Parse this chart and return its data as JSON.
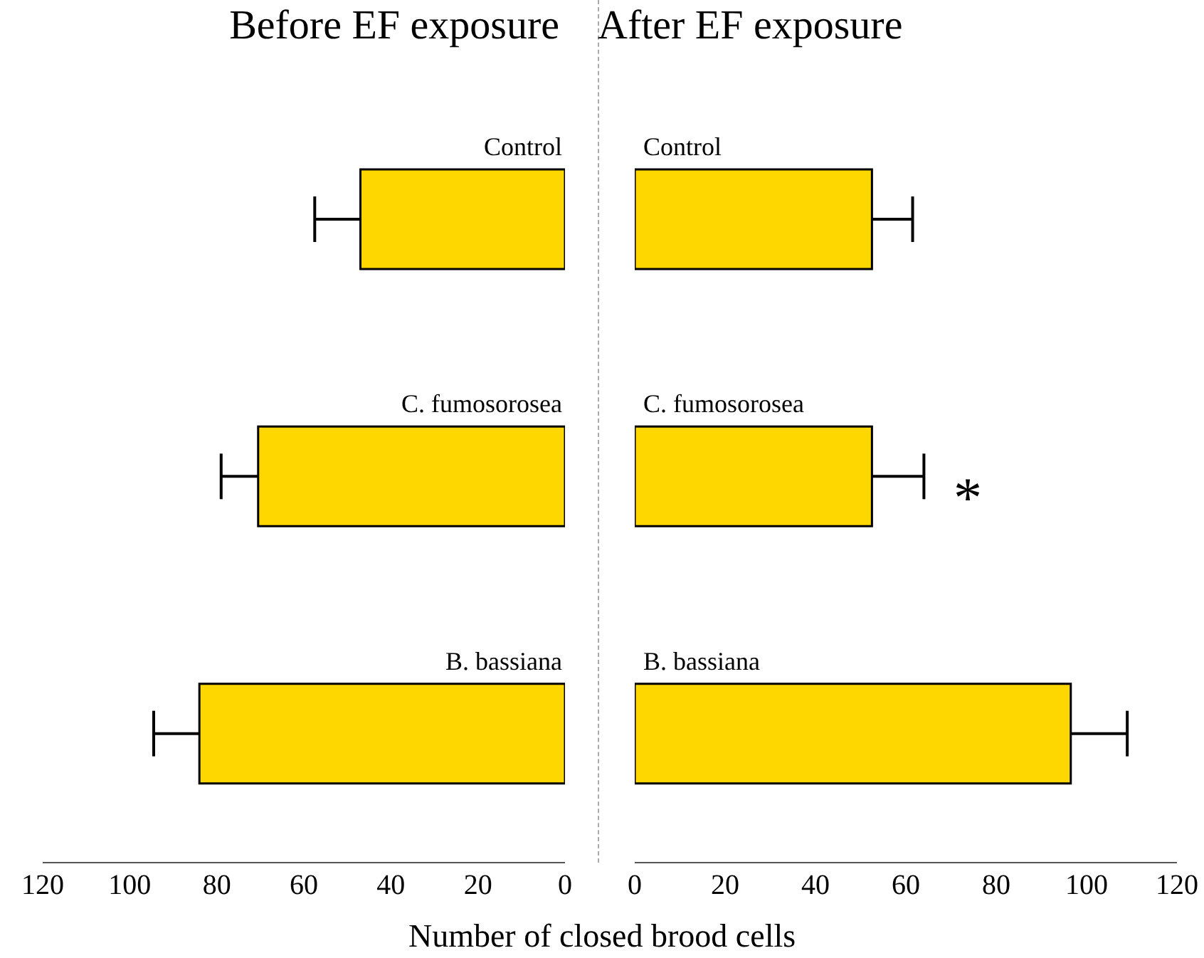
{
  "chart_data": [
    {
      "type": "bar",
      "orientation": "horizontal",
      "title": "Before EF exposure",
      "xlabel": "Number of closed brood cells",
      "categories": [
        "Control",
        "C. fumosorosea",
        "B. bassiana"
      ],
      "values": [
        47,
        70.5,
        84
      ],
      "errors": [
        [
          47,
          57.5
        ],
        [
          70.5,
          79
        ],
        [
          84,
          94.5
        ]
      ],
      "color": "#ffd700",
      "xlim": [
        120,
        0
      ],
      "xticks": [
        120,
        100,
        80,
        60,
        40,
        20,
        0
      ],
      "grid": false,
      "legend": false
    },
    {
      "type": "bar",
      "orientation": "horizontal",
      "title": "After EF exposure",
      "categories": [
        "Control",
        "C. fumosorosea",
        "B. bassiana"
      ],
      "values": [
        52.5,
        52.5,
        96.5
      ],
      "errors": [
        [
          52.5,
          61.5
        ],
        [
          52.5,
          64
        ],
        [
          96.5,
          109
        ]
      ],
      "color": "#ffd700",
      "xlim": [
        0,
        120
      ],
      "xticks": [
        0,
        20,
        40,
        60,
        80,
        100,
        120
      ],
      "grid": false,
      "legend": false,
      "annotations": [
        "*"
      ]
    }
  ]
}
